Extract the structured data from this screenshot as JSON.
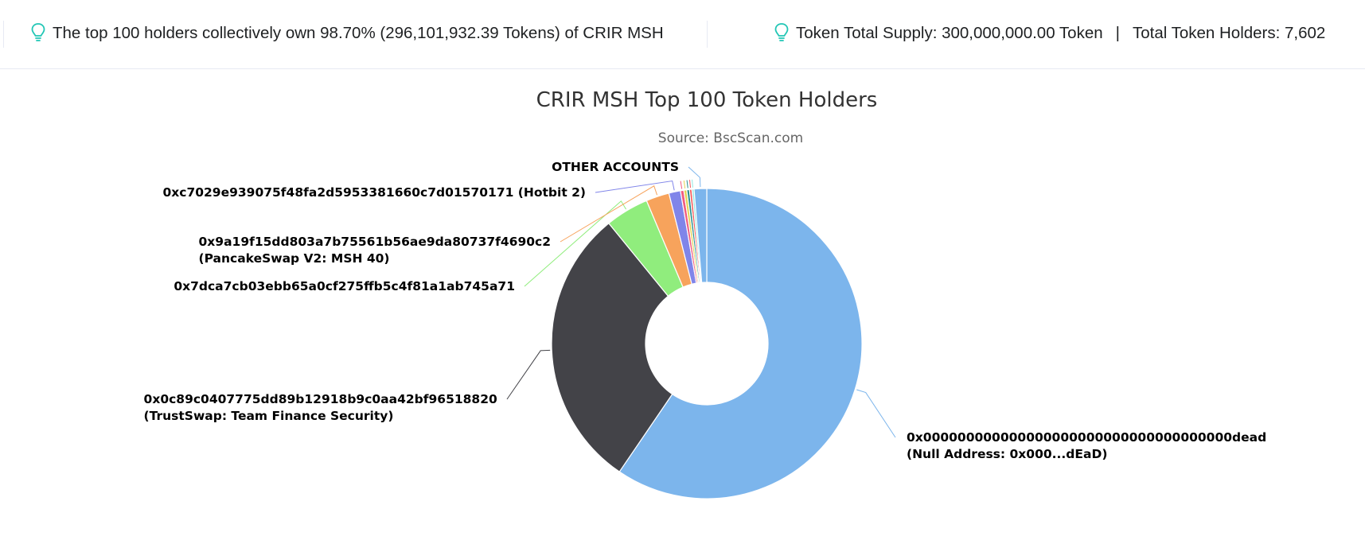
{
  "topbar": {
    "holders_summary": "The top 100 holders collectively own 98.70% (296,101,932.39 Tokens) of CRIR MSH",
    "total_supply": "Token Total Supply: 300,000,000.00 Token",
    "separator": "|",
    "total_holders": "Total Token Holders: 7,602",
    "icon": "lightbulb-icon",
    "icon_color": "#21c6b5"
  },
  "chart_data": {
    "type": "pie",
    "title": "CRIR MSH Top 100 Token Holders",
    "subtitle": "Source: BscScan.com",
    "donut": true,
    "slices": [
      {
        "label": [
          "0x000000000000000000000000000000000000dead",
          "(Null Address: 0x000...dEaD)"
        ],
        "value": 59.1,
        "color": "#7cb5ec"
      },
      {
        "label": [
          "0x0c89c0407775dd89b12918b9c0aa42bf96518820",
          "(TrustSwap: Team Finance Security)"
        ],
        "value": 29.4,
        "color": "#434348"
      },
      {
        "label": [
          "0x7dca7cb03ebb65a0cf275ffb5c4f81a1ab745a71"
        ],
        "value": 4.5,
        "color": "#90ed7d"
      },
      {
        "label": [
          "0x9a19f15dd803a7b75561b56ae9da80737f4690c2",
          "(PancakeSwap V2: MSH 40)"
        ],
        "value": 2.4,
        "color": "#f7a35c"
      },
      {
        "label": [
          "0xc7029e939075f48fa2d5953381660c7d01570171 (Hotbit 2)"
        ],
        "value": 1.2,
        "color": "#8085e9"
      },
      {
        "label": [],
        "value": 0.35,
        "color": "#f15c80"
      },
      {
        "label": [],
        "value": 0.3,
        "color": "#e4d354"
      },
      {
        "label": [],
        "value": 0.28,
        "color": "#2b908f"
      },
      {
        "label": [],
        "value": 0.25,
        "color": "#f45b5b"
      },
      {
        "label": [],
        "value": 0.22,
        "color": "#91e8e1"
      },
      {
        "label": [
          "OTHER ACCOUNTS"
        ],
        "value": 1.3,
        "color": "#7cb5ec"
      }
    ]
  }
}
